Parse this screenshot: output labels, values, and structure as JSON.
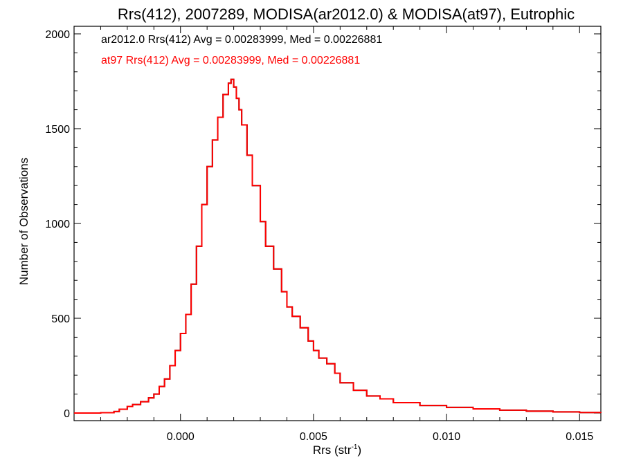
{
  "chart_data": {
    "type": "line",
    "title": "Rrs(412), 2007289, MODISA(ar2012.0) & MODISA(at97), Eutrophic",
    "xlabel": "Rrs (str",
    "xlabel_sup": "-1",
    "xlabel_close": ")",
    "ylabel": "Number of Observations",
    "xlim": [
      -0.004,
      0.0158
    ],
    "ylim": [
      -40,
      2040
    ],
    "x_ticks": [
      0.0,
      0.005,
      0.01,
      0.015
    ],
    "x_tick_labels": [
      "0.000",
      "0.005",
      "0.010",
      "0.015"
    ],
    "y_ticks": [
      0,
      500,
      1000,
      1500,
      2000
    ],
    "y_tick_labels": [
      "0",
      "500",
      "1000",
      "1500",
      "2000"
    ],
    "grid": false,
    "annotations": [
      {
        "text": "ar2012.0 Rrs(412) Avg = 0.00283999, Med = 0.00226881",
        "color": "#000000"
      },
      {
        "text": "at97 Rrs(412) Avg = 0.00283999, Med = 0.00226881",
        "color": "#ff0000"
      }
    ],
    "series": [
      {
        "color": "#000000",
        "x": [
          -0.004,
          -0.0035,
          -0.003,
          -0.0025,
          -0.0023,
          -0.002,
          -0.0018,
          -0.0015,
          -0.0012,
          -0.001,
          -0.0008,
          -0.0006,
          -0.0004,
          -0.0002,
          0.0,
          0.0002,
          0.0004,
          0.0006,
          0.0008,
          0.001,
          0.0012,
          0.0014,
          0.0016,
          0.0018,
          0.0019,
          0.002,
          0.0021,
          0.0022,
          0.0023,
          0.0025,
          0.0027,
          0.003,
          0.0032,
          0.0035,
          0.0038,
          0.004,
          0.0042,
          0.0045,
          0.0048,
          0.005,
          0.0052,
          0.0055,
          0.0058,
          0.006,
          0.0065,
          0.007,
          0.0075,
          0.008,
          0.009,
          0.01,
          0.011,
          0.012,
          0.013,
          0.014,
          0.015,
          0.0158
        ],
        "y": [
          0,
          0,
          2,
          8,
          20,
          35,
          45,
          60,
          80,
          100,
          140,
          180,
          250,
          330,
          420,
          520,
          680,
          880,
          1100,
          1300,
          1440,
          1560,
          1680,
          1740,
          1760,
          1720,
          1660,
          1600,
          1520,
          1360,
          1200,
          1010,
          880,
          760,
          640,
          560,
          510,
          450,
          380,
          330,
          290,
          260,
          210,
          160,
          120,
          90,
          75,
          55,
          40,
          30,
          22,
          15,
          10,
          6,
          3,
          1
        ]
      },
      {
        "color": "#ff0000",
        "x": [
          -0.004,
          -0.0035,
          -0.003,
          -0.0025,
          -0.0023,
          -0.002,
          -0.0018,
          -0.0015,
          -0.0012,
          -0.001,
          -0.0008,
          -0.0006,
          -0.0004,
          -0.0002,
          0.0,
          0.0002,
          0.0004,
          0.0006,
          0.0008,
          0.001,
          0.0012,
          0.0014,
          0.0016,
          0.0018,
          0.0019,
          0.002,
          0.0021,
          0.0022,
          0.0023,
          0.0025,
          0.0027,
          0.003,
          0.0032,
          0.0035,
          0.0038,
          0.004,
          0.0042,
          0.0045,
          0.0048,
          0.005,
          0.0052,
          0.0055,
          0.0058,
          0.006,
          0.0065,
          0.007,
          0.0075,
          0.008,
          0.009,
          0.01,
          0.011,
          0.012,
          0.013,
          0.014,
          0.015,
          0.0158
        ],
        "y": [
          0,
          0,
          2,
          8,
          20,
          35,
          45,
          60,
          80,
          100,
          140,
          180,
          250,
          330,
          420,
          520,
          680,
          880,
          1100,
          1300,
          1440,
          1560,
          1680,
          1740,
          1760,
          1720,
          1660,
          1600,
          1520,
          1360,
          1200,
          1010,
          880,
          760,
          640,
          560,
          510,
          450,
          380,
          330,
          290,
          260,
          210,
          160,
          120,
          90,
          75,
          55,
          40,
          30,
          22,
          15,
          10,
          6,
          3,
          1
        ]
      }
    ]
  }
}
